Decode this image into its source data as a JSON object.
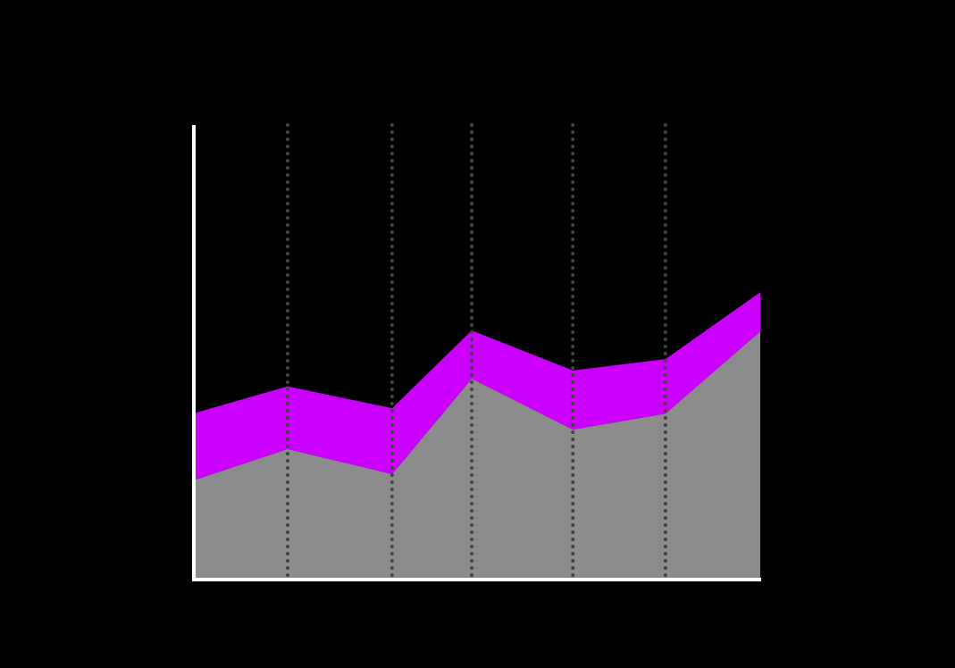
{
  "chart_data": {
    "type": "stacked-area",
    "x": [
      0,
      16.3,
      34.8,
      48.9,
      66.8,
      83.2,
      100
    ],
    "series": [
      {
        "color": "#8c8c8c",
        "values": [
          22.0,
          28.7,
          23.2,
          44.2,
          33.0,
          36.5,
          54.6
        ]
      },
      {
        "color": "#cc00ff",
        "values": [
          14.7,
          13.8,
          14.5,
          10.6,
          13.0,
          12.0,
          8.6
        ]
      }
    ],
    "xlim": [
      0,
      100
    ],
    "ylim": [
      0,
      100
    ],
    "xticks": [
      16.3,
      34.8,
      48.9,
      66.8,
      83.2
    ],
    "grid": true,
    "grid_color": "#444444",
    "axis_color": "#ffffff"
  }
}
